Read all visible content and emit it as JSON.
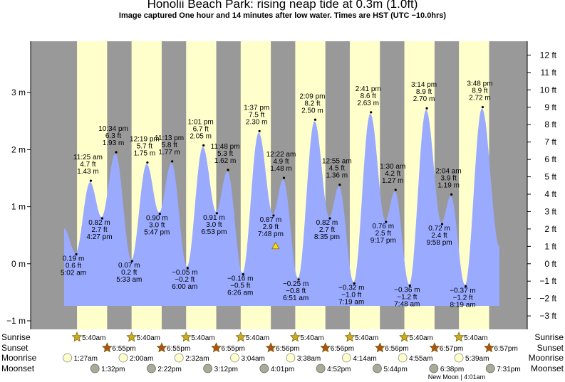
{
  "header": {
    "title": "Honolii Beach Park: rising  neap tide at 0.3m (1.0ft)",
    "subtitle": "Image captured One hour and 14 minutes after low water. Times are HST (UTC −10.0hrs)"
  },
  "colors": {
    "night": "#999999",
    "day": "#ffffcc",
    "tide_fill": "#99aaff",
    "sun_icon": "#ccaa22",
    "sunset_icon": "#aa5511",
    "moonrise_icon": "#ffffcc",
    "moonset_icon": "#aaaa99",
    "current_marker": "#ffdd00"
  },
  "chart_data": {
    "type": "area",
    "title": "Honolii Beach Park: rising  neap tide at 0.3m (1.0ft)",
    "x_unit": "hours from 00:00 on first day shown",
    "x_range": [
      0,
      191.5
    ],
    "left_axis": {
      "unit": "m",
      "range": [
        -1.15,
        3.9
      ],
      "ticks": [
        {
          "value": 3,
          "label": "3 m"
        },
        {
          "value": 2,
          "label": "2 m"
        },
        {
          "value": 1,
          "label": "1 m"
        },
        {
          "value": 0,
          "label": "0 m"
        },
        {
          "value": -1,
          "label": "−1 m"
        }
      ]
    },
    "right_axis": {
      "unit": "ft",
      "ticks": [
        {
          "value": 12,
          "label": "12 ft"
        },
        {
          "value": 11,
          "label": "11 ft"
        },
        {
          "value": 10,
          "label": "10 ft"
        },
        {
          "value": 9,
          "label": "9 ft"
        },
        {
          "value": 8,
          "label": "8 ft"
        },
        {
          "value": 7,
          "label": "7 ft"
        },
        {
          "value": 6,
          "label": "6 ft"
        },
        {
          "value": 5,
          "label": "5 ft"
        },
        {
          "value": 4,
          "label": "4 ft"
        },
        {
          "value": 3,
          "label": "3 ft"
        },
        {
          "value": 2,
          "label": "2 ft"
        },
        {
          "value": 1,
          "label": "1 ft"
        },
        {
          "value": 0,
          "label": "0 ft"
        },
        {
          "value": -1,
          "label": "−1 ft"
        },
        {
          "value": -2,
          "label": "−2 ft"
        },
        {
          "value": -3,
          "label": "−3 ft"
        }
      ]
    },
    "tide_start": {
      "t": 0,
      "h": 0.62
    },
    "tide_end": {
      "t": 191.5,
      "h": 0.3
    },
    "extremes": [
      {
        "t": 5.03,
        "h": 0.19,
        "m": "0.19 m",
        "ft": "0.6 ft",
        "time": "5:02 am",
        "type": "low"
      },
      {
        "t": 11.42,
        "h": 1.43,
        "m": "1.43 m",
        "ft": "4.7 ft",
        "time": "11:25 am",
        "type": "high"
      },
      {
        "t": 16.45,
        "h": 0.82,
        "m": "0.82 m",
        "ft": "2.7 ft",
        "time": "4:27 pm",
        "type": "low"
      },
      {
        "t": 22.57,
        "h": 1.93,
        "m": "1.93 m",
        "ft": "6.3 ft",
        "time": "10:34 pm",
        "type": "high"
      },
      {
        "t": 29.55,
        "h": 0.07,
        "m": "0.07 m",
        "ft": "0.2 ft",
        "time": "5:33 am",
        "type": "low"
      },
      {
        "t": 36.32,
        "h": 1.75,
        "m": "1.75 m",
        "ft": "5.7 ft",
        "time": "12:19 pm",
        "type": "high"
      },
      {
        "t": 41.78,
        "h": 0.9,
        "m": "0.90 m",
        "ft": "3.0 ft",
        "time": "5:47 pm",
        "type": "low"
      },
      {
        "t": 47.22,
        "h": 1.77,
        "m": "1.77 m",
        "ft": "5.8 ft",
        "time": "11:13 pm",
        "type": "high"
      },
      {
        "t": 54.0,
        "h": -0.05,
        "m": "−0.05 m",
        "ft": "−0.2 ft",
        "time": "6:00 am",
        "type": "low"
      },
      {
        "t": 61.02,
        "h": 2.05,
        "m": "2.05 m",
        "ft": "6.7 ft",
        "time": "1:01 pm",
        "type": "high"
      },
      {
        "t": 66.88,
        "h": 0.91,
        "m": "0.91 m",
        "ft": "3.0 ft",
        "time": "6:53 pm",
        "type": "low"
      },
      {
        "t": 71.8,
        "h": 1.62,
        "m": "1.62 m",
        "ft": "5.3 ft",
        "time": "11:48 pm",
        "type": "high"
      },
      {
        "t": 78.43,
        "h": -0.16,
        "m": "−0.16 m",
        "ft": "−0.5 ft",
        "time": "6:26 am",
        "type": "low"
      },
      {
        "t": 85.62,
        "h": 2.3,
        "m": "2.30 m",
        "ft": "7.5 ft",
        "time": "1:37 pm",
        "type": "high"
      },
      {
        "t": 91.8,
        "h": 0.87,
        "m": "0.87 m",
        "ft": "2.9 ft",
        "time": "7:48 pm",
        "type": "low"
      },
      {
        "t": 96.37,
        "h": 1.48,
        "m": "1.48 m",
        "ft": "4.9 ft",
        "time": "12:22 am",
        "type": "high"
      },
      {
        "t": 102.85,
        "h": -0.25,
        "m": "−0.25 m",
        "ft": "−0.8 ft",
        "time": "6:51 am",
        "type": "low"
      },
      {
        "t": 110.15,
        "h": 2.5,
        "m": "2.50 m",
        "ft": "8.2 ft",
        "time": "2:09 pm",
        "type": "high"
      },
      {
        "t": 116.58,
        "h": 0.82,
        "m": "0.82 m",
        "ft": "2.7 ft",
        "time": "8:35 pm",
        "type": "low"
      },
      {
        "t": 120.92,
        "h": 1.36,
        "m": "1.36 m",
        "ft": "4.5 ft",
        "time": "12:55 am",
        "type": "high"
      },
      {
        "t": 127.32,
        "h": -0.32,
        "m": "−0.32 m",
        "ft": "−1.0 ft",
        "time": "7:19 am",
        "type": "low"
      },
      {
        "t": 134.68,
        "h": 2.63,
        "m": "2.63 m",
        "ft": "8.6 ft",
        "time": "2:41 pm",
        "type": "high"
      },
      {
        "t": 141.28,
        "h": 0.76,
        "m": "0.76 m",
        "ft": "2.5 ft",
        "time": "9:17 pm",
        "type": "low"
      },
      {
        "t": 145.5,
        "h": 1.27,
        "m": "1.27 m",
        "ft": "4.2 ft",
        "time": "1:30 am",
        "type": "high"
      },
      {
        "t": 151.8,
        "h": -0.36,
        "m": "−0.36 m",
        "ft": "−1.2 ft",
        "time": "7:48 am",
        "type": "low"
      },
      {
        "t": 159.23,
        "h": 2.7,
        "m": "2.70 m",
        "ft": "8.9 ft",
        "time": "3:14 pm",
        "type": "high"
      },
      {
        "t": 165.97,
        "h": 0.72,
        "m": "0.72 m",
        "ft": "2.4 ft",
        "time": "9:58 pm",
        "type": "low"
      },
      {
        "t": 170.07,
        "h": 1.19,
        "m": "1.19 m",
        "ft": "3.9 ft",
        "time": "2:04 am",
        "type": "high"
      },
      {
        "t": 176.32,
        "h": -0.37,
        "m": "−0.37 m",
        "ft": "−1.2 ft",
        "time": "8:19 am",
        "type": "low"
      },
      {
        "t": 183.8,
        "h": 2.72,
        "m": "2.72 m",
        "ft": "8.9 ft",
        "time": "3:48 pm",
        "type": "high"
      }
    ],
    "current": {
      "t": 93.03,
      "h": 0.3
    },
    "days": [
      {
        "sunrise": 5.67,
        "sunset": 18.92,
        "sunrise_label": "5:40am",
        "sunset_label": "6:55pm"
      },
      {
        "sunrise": 29.67,
        "sunset": 42.92,
        "sunrise_label": "5:40am",
        "sunset_label": "6:55pm"
      },
      {
        "sunrise": 53.67,
        "sunset": 66.92,
        "sunrise_label": "5:40am",
        "sunset_label": "6:55pm"
      },
      {
        "sunrise": 77.67,
        "sunset": 90.93,
        "sunrise_label": "5:40am",
        "sunset_label": "6:56pm"
      },
      {
        "sunrise": 101.67,
        "sunset": 114.93,
        "sunrise_label": "5:40am",
        "sunset_label": "6:56pm"
      },
      {
        "sunrise": 125.67,
        "sunset": 138.93,
        "sunrise_label": "5:40am",
        "sunset_label": "6:56pm"
      },
      {
        "sunrise": 149.67,
        "sunset": 162.95,
        "sunrise_label": "5:40am",
        "sunset_label": "6:57pm"
      },
      {
        "sunrise": 173.67,
        "sunset": 186.95,
        "sunrise_label": "5:40am",
        "sunset_label": "6:57pm"
      }
    ],
    "moonrises": [
      {
        "t": 1.45,
        "label": "1:27am"
      },
      {
        "t": 26.0,
        "label": "2:00am"
      },
      {
        "t": 50.53,
        "label": "2:32am"
      },
      {
        "t": 75.07,
        "label": "3:04am"
      },
      {
        "t": 99.63,
        "label": "3:38am"
      },
      {
        "t": 124.23,
        "label": "4:14am"
      },
      {
        "t": 148.92,
        "label": "4:55am"
      },
      {
        "t": 173.65,
        "label": "5:39am"
      }
    ],
    "moonsets": [
      {
        "t": 13.53,
        "label": "1:32pm"
      },
      {
        "t": 38.37,
        "label": "2:22pm"
      },
      {
        "t": 63.2,
        "label": "3:12pm"
      },
      {
        "t": 88.02,
        "label": "4:01pm"
      },
      {
        "t": 112.87,
        "label": "4:52pm"
      },
      {
        "t": 137.73,
        "label": "5:44pm"
      },
      {
        "t": 162.63,
        "label": "6:38pm"
      },
      {
        "t": 187.52,
        "label": "7:31pm"
      }
    ],
    "moon_phase_note": "New Moon | 4:01am",
    "row_labels": [
      "Sunrise",
      "Sunset",
      "Moonrise",
      "Moonset"
    ]
  }
}
